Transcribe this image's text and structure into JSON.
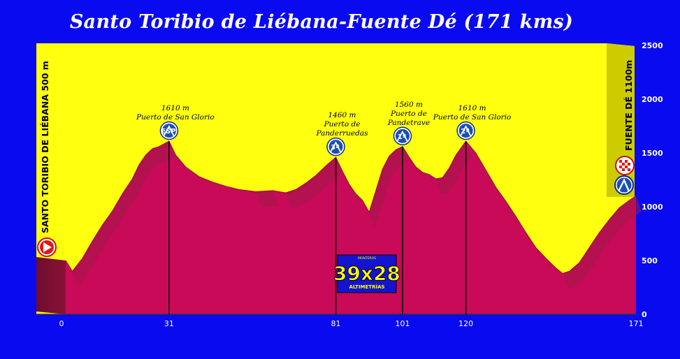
{
  "title": "Santo Toribio de Liébana-Fuente Dé (171 kms)",
  "start_label": "SANTO TORIBIO DE LIÉBANA 500 m",
  "finish_label": "FUENTE DÉ 1100m",
  "logo": {
    "top": "MONTEROS",
    "main": "39x28",
    "bottom": "ALTIMETRÍAS"
  },
  "chart_data": {
    "type": "area",
    "title": "Santo Toribio de Liébana-Fuente Dé (171 kms)",
    "xlabel": "",
    "ylabel": "",
    "xlim": [
      0,
      171
    ],
    "ylim": [
      0,
      2500
    ],
    "yticks": [
      0,
      500,
      1000,
      1500,
      2000,
      2500
    ],
    "xticks": [
      0,
      31,
      81,
      101,
      120,
      171
    ],
    "colors": {
      "background": "#ffff10",
      "profile": "#c80a58",
      "frame": "#0a0af0"
    },
    "profile": [
      [
        0,
        500
      ],
      [
        2,
        400
      ],
      [
        5,
        520
      ],
      [
        8,
        680
      ],
      [
        11,
        830
      ],
      [
        14,
        960
      ],
      [
        17,
        1120
      ],
      [
        20,
        1260
      ],
      [
        22,
        1390
      ],
      [
        24,
        1480
      ],
      [
        26,
        1540
      ],
      [
        28,
        1560
      ],
      [
        31,
        1610
      ],
      [
        33,
        1480
      ],
      [
        36,
        1370
      ],
      [
        40,
        1280
      ],
      [
        44,
        1230
      ],
      [
        48,
        1190
      ],
      [
        52,
        1160
      ],
      [
        57,
        1140
      ],
      [
        62,
        1150
      ],
      [
        66,
        1130
      ],
      [
        69,
        1160
      ],
      [
        72,
        1220
      ],
      [
        75,
        1290
      ],
      [
        78,
        1380
      ],
      [
        81,
        1460
      ],
      [
        83,
        1330
      ],
      [
        85,
        1210
      ],
      [
        87,
        1120
      ],
      [
        89,
        1060
      ],
      [
        91,
        950
      ],
      [
        93,
        1150
      ],
      [
        95,
        1350
      ],
      [
        97,
        1470
      ],
      [
        99,
        1530
      ],
      [
        101,
        1560
      ],
      [
        103,
        1460
      ],
      [
        105,
        1370
      ],
      [
        107,
        1320
      ],
      [
        109,
        1300
      ],
      [
        111,
        1260
      ],
      [
        113,
        1270
      ],
      [
        115,
        1360
      ],
      [
        117,
        1480
      ],
      [
        120,
        1610
      ],
      [
        123,
        1500
      ],
      [
        126,
        1340
      ],
      [
        129,
        1180
      ],
      [
        132,
        1050
      ],
      [
        135,
        910
      ],
      [
        138,
        760
      ],
      [
        141,
        620
      ],
      [
        144,
        520
      ],
      [
        147,
        430
      ],
      [
        149,
        380
      ],
      [
        151,
        400
      ],
      [
        154,
        480
      ],
      [
        157,
        620
      ],
      [
        160,
        760
      ],
      [
        163,
        880
      ],
      [
        166,
        990
      ],
      [
        169,
        1060
      ],
      [
        171,
        1100
      ]
    ],
    "climbs": [
      {
        "km": 31,
        "alt": 1610,
        "altitude_label": "1610 m",
        "name_lines": [
          "Puerto de San Glorio"
        ],
        "category": "ESP"
      },
      {
        "km": 81,
        "alt": 1460,
        "altitude_label": "1460 m",
        "name_lines": [
          "Puerto de",
          "Panderruedas"
        ],
        "category": "3ª"
      },
      {
        "km": 101,
        "alt": 1560,
        "altitude_label": "1560 m",
        "name_lines": [
          "Puerto de",
          "Pandetrave"
        ],
        "category": "1ª"
      },
      {
        "km": 120,
        "alt": 1610,
        "altitude_label": "1610 m",
        "name_lines": [
          "Puerto de San Glorio"
        ],
        "category": "2ª"
      }
    ]
  }
}
